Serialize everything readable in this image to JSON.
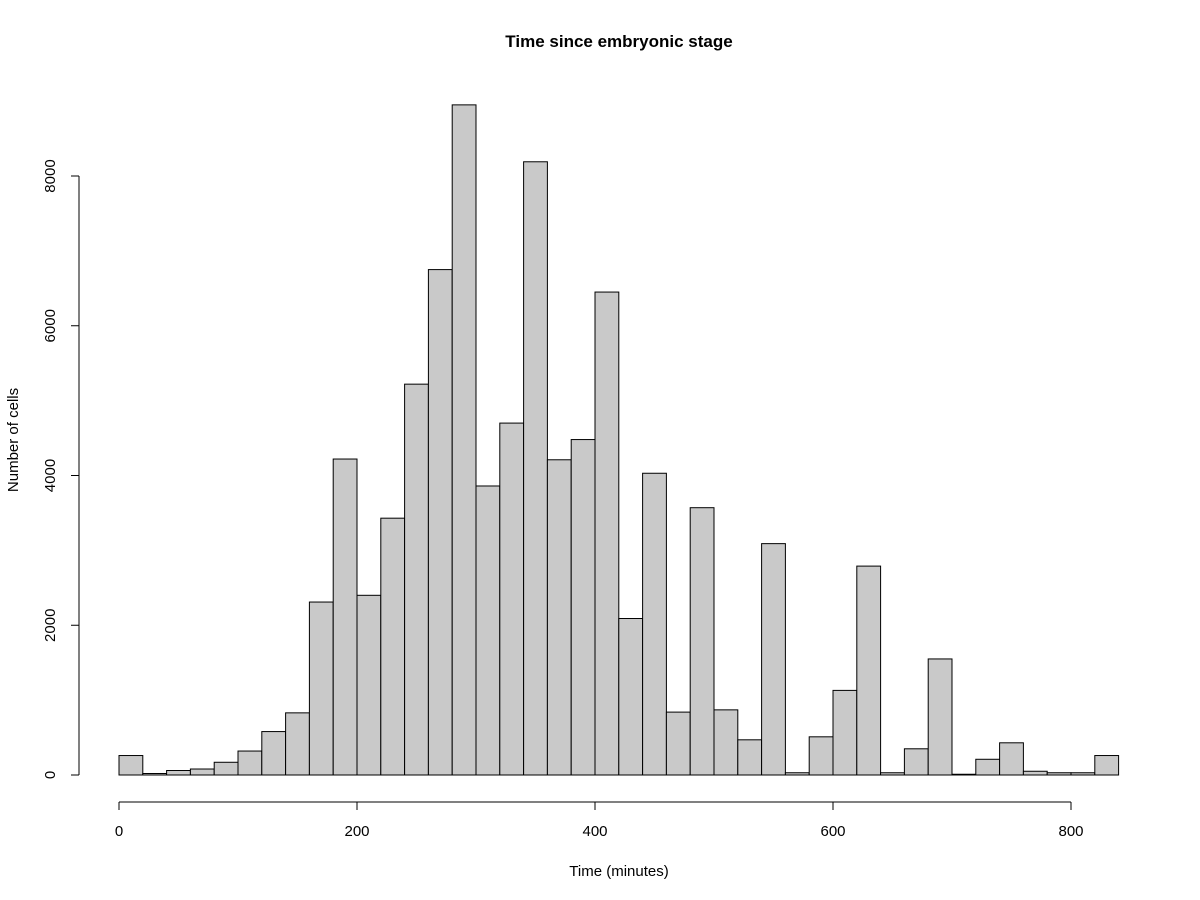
{
  "chart_data": {
    "type": "bar",
    "title": "Time since embryonic stage",
    "xlabel": "Time (minutes)",
    "ylabel": "Number of cells",
    "xlim": [
      0,
      840
    ],
    "ylim": [
      0,
      9000
    ],
    "xticks": [
      "0",
      "200",
      "400",
      "600",
      "800"
    ],
    "yticks": [
      "0",
      "2000",
      "4000",
      "6000",
      "8000"
    ],
    "bin_width": 20,
    "bin_start": 0,
    "values": [
      260,
      20,
      60,
      80,
      170,
      320,
      580,
      830,
      2310,
      4220,
      2400,
      3430,
      5220,
      6750,
      8950,
      3860,
      4700,
      8190,
      4210,
      4480,
      6450,
      2090,
      4030,
      840,
      3570,
      870,
      470,
      3090,
      30,
      510,
      1130,
      2790,
      30,
      350,
      1550,
      10,
      210,
      430,
      50,
      30,
      30,
      260
    ],
    "grid": false,
    "legend": "none",
    "bar_color": "#c9c9c9"
  }
}
